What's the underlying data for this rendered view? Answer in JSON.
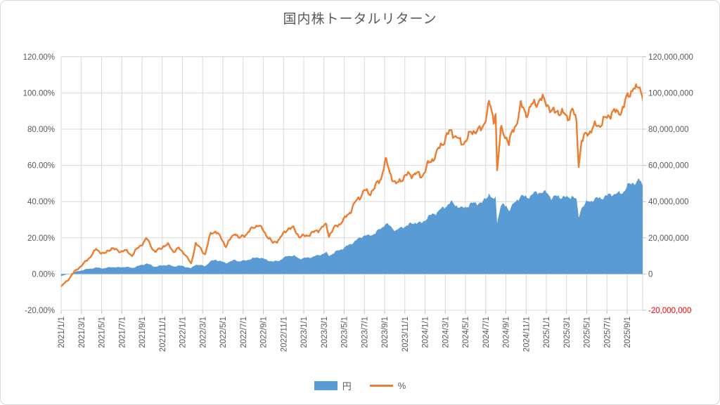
{
  "title": "国内株トータルリターン",
  "legend": [
    {
      "label": "円",
      "color": "#5b9bd5",
      "type": "area"
    },
    {
      "label": "%",
      "color": "#ed7d31",
      "type": "line"
    }
  ],
  "colors": {
    "grid": "#d9d9d9",
    "tick": "#bfbfbf",
    "axis_text": "#595959",
    "negative_axis_text": "#ff0000",
    "area_fill": "#5b9bd5",
    "line_stroke": "#ed7d31"
  },
  "left_axis": {
    "ticks": [
      "120.00%",
      "100.00%",
      "80.00%",
      "60.00%",
      "40.00%",
      "20.00%",
      "0.00%",
      "-20.00%"
    ],
    "min": -20,
    "max": 120,
    "step": 20
  },
  "right_axis": {
    "ticks": [
      "120,000,000",
      "100,000,000",
      "80,000,000",
      "60,000,000",
      "40,000,000",
      "20,000,000",
      "0",
      "-20,000,000"
    ],
    "min": -20000000,
    "max": 120000000,
    "step": 20000000
  },
  "x_axis": {
    "labels": [
      "2021/1/1",
      "2021/3/1",
      "2021/5/1",
      "2021/7/1",
      "2021/9/1",
      "2021/11/1",
      "2022/1/1",
      "2022/3/1",
      "2022/5/1",
      "2022/7/1",
      "2022/9/1",
      "2022/11/1",
      "2023/1/1",
      "2023/3/1",
      "2023/5/1",
      "2023/7/1",
      "2023/9/1",
      "2023/11/1",
      "2024/1/1",
      "2024/3/1",
      "2024/5/1",
      "2024/7/1",
      "2024/9/1",
      "2024/11/1",
      "2025/1/1",
      "2025/3/1",
      "2025/5/1",
      "2025/7/1",
      "2025/9/1"
    ]
  },
  "chart_data": {
    "type": "combo",
    "title": "国内株トータルリターン",
    "left_ylim_percent": [
      -20,
      120
    ],
    "right_ylim_yen": [
      -20000000,
      120000000
    ],
    "grid": true,
    "legend_position": "bottom",
    "dates": [
      "2021/1/1",
      "2021/1/20",
      "2021/2/5",
      "2021/2/20",
      "2021/3/10",
      "2021/4/1",
      "2021/4/15",
      "2021/5/10",
      "2021/6/1",
      "2021/6/20",
      "2021/7/10",
      "2021/8/1",
      "2021/8/20",
      "2021/9/15",
      "2021/10/10",
      "2021/11/5",
      "2021/11/20",
      "2021/12/5",
      "2021/12/20",
      "2022/1/5",
      "2022/1/27",
      "2022/2/10",
      "2022/3/8",
      "2022/3/25",
      "2022/4/10",
      "2022/5/10",
      "2022/6/8",
      "2022/6/20",
      "2022/7/5",
      "2022/8/15",
      "2022/9/5",
      "2022/9/30",
      "2022/10/20",
      "2022/11/15",
      "2022/12/1",
      "2022/12/20",
      "2023/1/5",
      "2023/2/1",
      "2023/3/8",
      "2023/3/16",
      "2023/4/5",
      "2023/5/1",
      "2023/5/20",
      "2023/6/10",
      "2023/7/1",
      "2023/7/15",
      "2023/8/1",
      "2023/8/20",
      "2023/9/4",
      "2023/9/20",
      "2023/10/5",
      "2023/10/25",
      "2023/11/10",
      "2023/12/1",
      "2023/12/20",
      "2024/1/10",
      "2024/1/25",
      "2024/2/10",
      "2024/3/5",
      "2024/3/20",
      "2024/4/5",
      "2024/4/18",
      "2024/5/10",
      "2024/6/1",
      "2024/6/20",
      "2024/7/5",
      "2024/7/11",
      "2024/7/25",
      "2024/7/31",
      "2024/8/5",
      "2024/8/16",
      "2024/9/3",
      "2024/9/10",
      "2024/10/1",
      "2024/10/15",
      "2024/11/1",
      "2024/11/20",
      "2024/12/12",
      "2025/1/6",
      "2025/1/17",
      "2025/2/5",
      "2025/2/20",
      "2025/3/5",
      "2025/3/18",
      "2025/3/31",
      "2025/4/7",
      "2025/4/16",
      "2025/5/5",
      "2025/5/20",
      "2025/6/10",
      "2025/7/1",
      "2025/7/15",
      "2025/8/1",
      "2025/8/20",
      "2025/9/5",
      "2025/9/19",
      "2025/9/29",
      "2025/10/7",
      "2025/10/20"
    ],
    "series": [
      {
        "name": "%",
        "type": "line",
        "axis": "left",
        "unit": "percent",
        "color": "#ed7d31",
        "values": [
          -7,
          -3.5,
          0,
          3,
          6,
          10.5,
          13.5,
          11,
          14.5,
          12.5,
          13,
          10.5,
          14.5,
          19.5,
          12,
          15.5,
          16,
          12.5,
          14,
          12,
          5.5,
          17,
          11,
          22,
          24,
          15.5,
          23,
          19.5,
          21.5,
          27.5,
          23,
          17,
          19.5,
          25.5,
          25,
          20.5,
          21,
          23,
          27,
          21.5,
          26,
          30,
          35,
          41,
          46,
          44.5,
          47.5,
          53,
          62.5,
          55,
          49,
          53.5,
          54.5,
          55.5,
          54,
          60,
          64,
          68,
          76.5,
          78.5,
          76,
          71.5,
          76,
          80,
          79,
          90,
          94.5,
          84,
          91,
          57,
          79,
          76,
          72.5,
          83,
          92.5,
          89,
          93,
          96.5,
          94.5,
          88.5,
          90.5,
          88,
          87,
          90.5,
          84,
          61.5,
          73,
          78.5,
          80.5,
          83,
          86,
          90,
          88.5,
          92,
          99,
          103.5,
          100.5,
          104.5,
          97.5
        ]
      },
      {
        "name": "円",
        "type": "area",
        "axis": "right",
        "unit": "yen",
        "color": "#5b9bd5",
        "values": [
          -1000000,
          -300000,
          600000,
          1500000,
          2400000,
          3100000,
          3500000,
          3200000,
          3900000,
          3600000,
          4000000,
          3400000,
          4400000,
          5800000,
          4000000,
          4900000,
          5000000,
          4200000,
          4600000,
          4300000,
          3100000,
          5300000,
          4400000,
          7000000,
          7900000,
          6100000,
          7800000,
          7000000,
          7400000,
          9300000,
          8200000,
          6800000,
          7600000,
          10200000,
          10000000,
          8500000,
          8800000,
          9600000,
          11800000,
          10100000,
          12200000,
          14500000,
          16500000,
          19000000,
          21500000,
          21000000,
          22500000,
          25000000,
          28000000,
          26000000,
          24000000,
          26000000,
          27000000,
          28500000,
          28000000,
          31500000,
          33000000,
          34500000,
          38000000,
          39500000,
          38000000,
          36000000,
          38000000,
          39500000,
          39000000,
          43000000,
          44500000,
          40000000,
          43000000,
          28500000,
          38000000,
          37500000,
          35500000,
          40000000,
          43500000,
          42000000,
          44000000,
          45500000,
          44500000,
          42000000,
          43000000,
          42500000,
          42000000,
          43500000,
          40500000,
          31500000,
          37000000,
          40000000,
          41000000,
          42000000,
          43000000,
          44500000,
          44000000,
          45500000,
          49000000,
          51000000,
          50000000,
          52000000,
          48500000
        ]
      }
    ]
  }
}
